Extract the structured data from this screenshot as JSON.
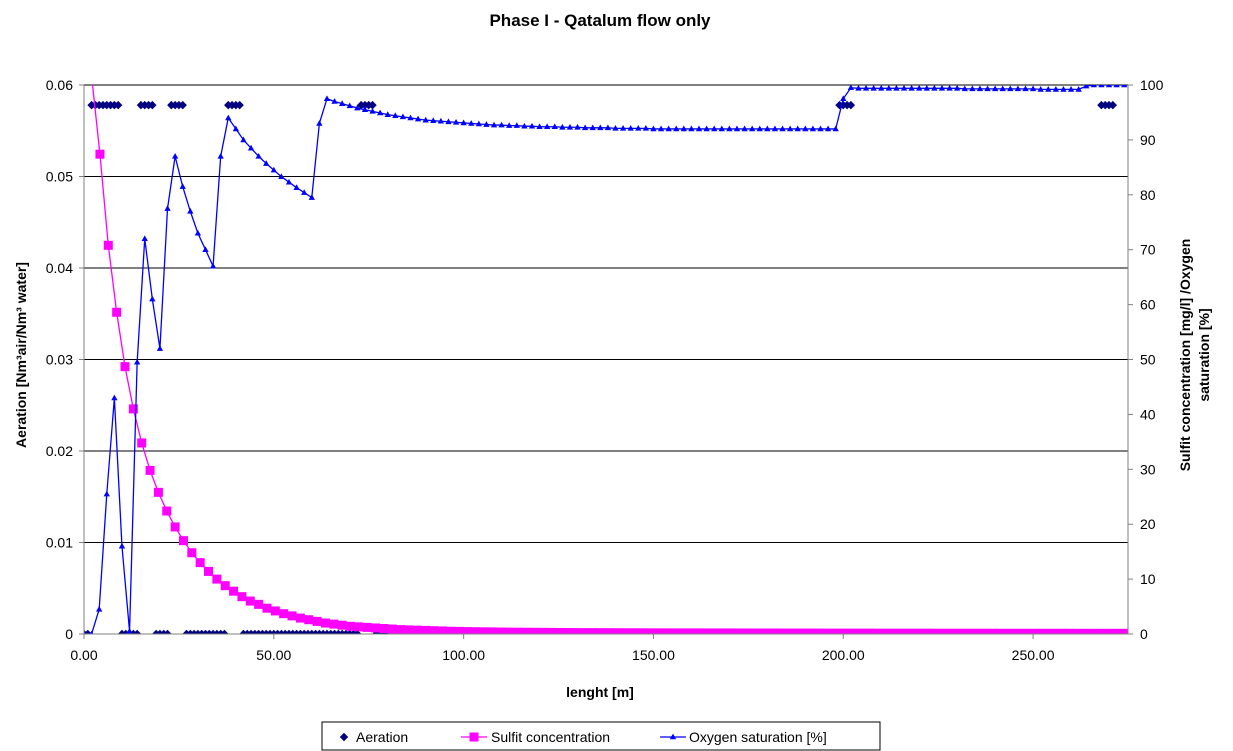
{
  "chart_data": {
    "type": "line",
    "title": "Phase I - Qatalum flow only",
    "xlabel": "lenght [m]",
    "ylabel_left": "Aeration [Nm³air/Nm³ water]",
    "ylabel_right_line1": "Sulfit concentration [mg/l] /Oxygen",
    "ylabel_right_line2": "saturation [%]",
    "xlim": [
      0,
      275
    ],
    "ylim_left": [
      0,
      0.06
    ],
    "ylim_right": [
      0,
      100
    ],
    "x_ticks": [
      "0.00",
      "50.00",
      "100.00",
      "150.00",
      "200.00",
      "250.00"
    ],
    "x_tick_values": [
      0,
      50,
      100,
      150,
      200,
      250
    ],
    "y_left_ticks": [
      "0",
      "0.01",
      "0.02",
      "0.03",
      "0.04",
      "0.05",
      "0.06"
    ],
    "y_left_tick_values": [
      0,
      0.01,
      0.02,
      0.03,
      0.04,
      0.05,
      0.06
    ],
    "y_right_ticks": [
      "0",
      "10",
      "20",
      "30",
      "40",
      "50",
      "60",
      "70",
      "80",
      "90",
      "100"
    ],
    "y_right_tick_values": [
      0,
      10,
      20,
      30,
      40,
      50,
      60,
      70,
      80,
      90,
      100
    ],
    "grid": "horizontal",
    "legend_position": "bottom",
    "series": [
      {
        "name": "Aeration",
        "axis": "left",
        "marker": "diamond",
        "color": "#000080",
        "line": false,
        "x": [
          0,
          1,
          2,
          3,
          4,
          5,
          6,
          7,
          8,
          9,
          10,
          11,
          12,
          13,
          14,
          15,
          16,
          17,
          18,
          19,
          20,
          21,
          22,
          23,
          24,
          25,
          26,
          27,
          28,
          29,
          30,
          31,
          32,
          33,
          34,
          35,
          36,
          37,
          38,
          39,
          40,
          41,
          42,
          43,
          44,
          45,
          46,
          47,
          48,
          49,
          50,
          51,
          52,
          53,
          54,
          55,
          56,
          57,
          58,
          59,
          60,
          61,
          62,
          63,
          64,
          65,
          66,
          67,
          68,
          69,
          70,
          71,
          72,
          73,
          74,
          75,
          76,
          77,
          78,
          79,
          80,
          81,
          82,
          83,
          84,
          85,
          86,
          87,
          88,
          89,
          90,
          91,
          92,
          93,
          94,
          95,
          96,
          97,
          98,
          99,
          100,
          101,
          102,
          103,
          104,
          105,
          106,
          107,
          108,
          109,
          110,
          111,
          112,
          113,
          114,
          115,
          116,
          117,
          118,
          119,
          120,
          121,
          122,
          123,
          124,
          125,
          126,
          127,
          128,
          129,
          130,
          131,
          132,
          133,
          134,
          135,
          136,
          137,
          138,
          139,
          140,
          141,
          142,
          143,
          144,
          145,
          146,
          147,
          148,
          149,
          150,
          151,
          152,
          153,
          154,
          155,
          156,
          157,
          158,
          159,
          160,
          161,
          162,
          163,
          164,
          165,
          166,
          167,
          168,
          169,
          170,
          171,
          172,
          173,
          174,
          175,
          176,
          177,
          178,
          179,
          180,
          181,
          182,
          183,
          184,
          185,
          186,
          187,
          188,
          189,
          190,
          191,
          192,
          193,
          194,
          195,
          196,
          197,
          198,
          199,
          200,
          201,
          202,
          203,
          204,
          205,
          206,
          207,
          208,
          209,
          210,
          211,
          212,
          213,
          214,
          215,
          216,
          217,
          218,
          219,
          220,
          221,
          222,
          223,
          224,
          225,
          226,
          227,
          228,
          229,
          230,
          231,
          232,
          233,
          234,
          235,
          236,
          237,
          238,
          239,
          240,
          241,
          242,
          243,
          244,
          245,
          246,
          247,
          248,
          249,
          250,
          251,
          252,
          253,
          254,
          255,
          256,
          257,
          258,
          259,
          260,
          261,
          262,
          263,
          264,
          265,
          266,
          267,
          268,
          269,
          270,
          271,
          272,
          273,
          274
        ],
        "y": [
          0,
          0,
          0.0578,
          0.0578,
          0.0578,
          0.0578,
          0.0578,
          0.0578,
          0.0578,
          0.0578,
          0,
          0,
          0,
          0,
          0,
          0.0578,
          0.0578,
          0.0578,
          0.0578,
          0,
          0,
          0,
          0,
          0.0578,
          0.0578,
          0.0578,
          0.0578,
          0,
          0,
          0,
          0,
          0,
          0,
          0,
          0,
          0,
          0,
          0,
          0.0578,
          0.0578,
          0.0578,
          0.0578,
          0,
          0,
          0,
          0,
          0,
          0,
          0,
          0,
          0,
          0,
          0,
          0,
          0,
          0,
          0,
          0,
          0,
          0,
          0,
          0,
          0,
          0,
          0,
          0,
          0,
          0,
          0,
          0,
          0,
          0,
          0,
          0.0578,
          0.0578,
          0.0578,
          0.0578,
          0,
          0,
          0,
          0,
          0,
          0,
          0,
          0,
          0,
          0,
          0,
          0,
          0,
          0,
          0,
          0,
          0,
          0,
          0,
          0,
          0,
          0,
          0,
          0,
          0,
          0,
          0,
          0,
          0,
          0,
          0,
          0,
          0,
          0,
          0,
          0,
          0,
          0,
          0,
          0,
          0,
          0,
          0,
          0,
          0,
          0,
          0,
          0,
          0,
          0,
          0,
          0,
          0,
          0,
          0,
          0,
          0,
          0,
          0,
          0,
          0,
          0,
          0,
          0,
          0,
          0,
          0,
          0,
          0,
          0,
          0,
          0,
          0,
          0,
          0,
          0,
          0,
          0,
          0,
          0,
          0,
          0,
          0,
          0,
          0,
          0,
          0,
          0,
          0,
          0,
          0,
          0,
          0,
          0,
          0,
          0,
          0,
          0,
          0,
          0,
          0,
          0,
          0,
          0,
          0,
          0,
          0,
          0,
          0,
          0,
          0,
          0,
          0,
          0,
          0,
          0,
          0,
          0,
          0,
          0,
          0,
          0,
          0.0578,
          0.0578,
          0.0578,
          0.0578,
          0,
          0,
          0,
          0,
          0,
          0,
          0,
          0,
          0,
          0,
          0,
          0,
          0,
          0,
          0,
          0,
          0,
          0,
          0,
          0,
          0,
          0,
          0,
          0,
          0,
          0,
          0,
          0,
          0,
          0,
          0,
          0,
          0,
          0,
          0,
          0,
          0,
          0,
          0,
          0,
          0,
          0,
          0,
          0,
          0,
          0,
          0,
          0,
          0,
          0,
          0,
          0,
          0,
          0,
          0,
          0,
          0,
          0,
          0,
          0,
          0,
          0,
          0,
          0,
          0,
          0.0578,
          0.0578,
          0.0578,
          0.0578,
          0,
          0,
          0
        ]
      },
      {
        "name": "Sulfit concentration",
        "axis": "right",
        "marker": "square",
        "color": "#ff00ff",
        "line": true,
        "x": [
          2,
          4.2,
          6.4,
          8.6,
          10.8,
          13,
          15.2,
          17.4,
          19.6,
          21.8,
          24,
          26.2,
          28.4,
          30.6,
          32.8,
          35,
          37.2,
          39.4,
          41.6,
          43.8,
          46,
          48.2,
          50.4,
          52.6,
          54.8,
          57,
          59.2,
          61.4,
          63.6,
          65.8,
          68,
          70.2,
          72.4,
          74.6,
          76.8,
          79,
          81.2,
          83.4,
          85.6,
          87.8,
          90,
          92.2,
          94.4,
          96.6,
          98.8,
          101,
          103.2,
          105.4,
          107.6,
          109.8,
          112,
          114.2,
          116.4,
          118.6,
          120.8,
          123,
          125.2,
          127.4,
          129.6,
          131.8,
          134,
          136.2,
          138.4,
          140.6,
          142.8,
          145,
          147.2,
          149.4,
          151.6,
          153.8,
          156,
          158.2,
          160.4,
          162.6,
          164.8,
          167,
          169.2,
          171.4,
          173.6,
          175.8,
          178,
          180.2,
          182.4,
          184.6,
          186.8,
          189,
          191.2,
          193.4,
          195.6,
          197.8,
          200,
          202.2,
          204.4,
          206.6,
          208.8,
          211,
          213.2,
          215.4,
          217.6,
          219.8,
          222,
          224.2,
          226.4,
          228.6,
          230.8,
          233,
          235.2,
          237.4,
          239.6,
          241.8,
          244,
          246.2,
          248.4,
          250.6,
          252.8,
          255,
          257.2,
          259.4,
          261.6,
          263.8,
          266,
          268.2,
          270.4,
          272.6,
          274.8
        ],
        "y": [
          101.6,
          87.4,
          70.8,
          58.6,
          48.7,
          41,
          34.8,
          29.8,
          25.8,
          22.4,
          19.5,
          17,
          14.8,
          13,
          11.4,
          10,
          8.8,
          7.8,
          6.8,
          6,
          5.4,
          4.7,
          4.2,
          3.7,
          3.3,
          2.9,
          2.6,
          2.3,
          2,
          1.8,
          1.6,
          1.4,
          1.3,
          1.2,
          1.1,
          1,
          0.9,
          0.8,
          0.75,
          0.7,
          0.65,
          0.6,
          0.55,
          0.5,
          0.47,
          0.44,
          0.42,
          0.4,
          0.38,
          0.36,
          0.34,
          0.33,
          0.32,
          0.31,
          0.3,
          0.29,
          0.28,
          0.27,
          0.26,
          0.25,
          0.25,
          0.24,
          0.24,
          0.23,
          0.23,
          0.22,
          0.22,
          0.21,
          0.21,
          0.21,
          0.2,
          0.2,
          0.2,
          0.2,
          0.19,
          0.19,
          0.19,
          0.19,
          0.18,
          0.18,
          0.18,
          0.18,
          0.18,
          0.17,
          0.17,
          0.17,
          0.17,
          0.17,
          0.16,
          0.16,
          0.16,
          0.16,
          0.16,
          0.16,
          0.15,
          0.15,
          0.15,
          0.15,
          0.15,
          0.15,
          0.15,
          0.14,
          0.14,
          0.14,
          0.14,
          0.14,
          0.14,
          0.14,
          0.14,
          0.13,
          0.13,
          0.13,
          0.13,
          0.13,
          0.13,
          0.13,
          0.13,
          0.13,
          0.12,
          0.12,
          0.12,
          0.12,
          0.12,
          0.12,
          0.12
        ]
      },
      {
        "name": "Oxygen saturation [%]",
        "axis": "right",
        "marker": "triangle",
        "color": "#0000ff",
        "line": true,
        "x": [
          0,
          2,
          4,
          6,
          8,
          10,
          12,
          14,
          16,
          18,
          20,
          22,
          24,
          26,
          28,
          30,
          32,
          34,
          36,
          38,
          40,
          42,
          44,
          46,
          48,
          50,
          52,
          54,
          56,
          58,
          60,
          62,
          64,
          66,
          68,
          70,
          72,
          74,
          76,
          78,
          80,
          82,
          84,
          86,
          88,
          90,
          92,
          94,
          96,
          98,
          100,
          102,
          104,
          106,
          108,
          110,
          112,
          114,
          116,
          118,
          120,
          122,
          124,
          126,
          128,
          130,
          132,
          134,
          136,
          138,
          140,
          142,
          144,
          146,
          148,
          150,
          152,
          154,
          156,
          158,
          160,
          162,
          164,
          166,
          168,
          170,
          172,
          174,
          176,
          178,
          180,
          182,
          184,
          186,
          188,
          190,
          192,
          194,
          196,
          198,
          200,
          202,
          204,
          206,
          208,
          210,
          212,
          214,
          216,
          218,
          220,
          222,
          224,
          226,
          228,
          230,
          232,
          234,
          236,
          238,
          240,
          242,
          244,
          246,
          248,
          250,
          252,
          254,
          256,
          258,
          260,
          262,
          264,
          266,
          268,
          270,
          272,
          274
        ],
        "y": [
          0,
          0,
          4.5,
          25.5,
          43,
          16,
          0.5,
          49.5,
          72,
          61,
          52,
          77.5,
          87,
          81.5,
          77,
          73,
          70,
          67,
          87,
          94,
          92,
          90,
          88.5,
          87,
          85.7,
          84.5,
          83.3,
          82.3,
          81.3,
          80.4,
          79.5,
          93,
          97.5,
          97,
          96.6,
          96.2,
          95.8,
          95.5,
          95.2,
          94.9,
          94.6,
          94.4,
          94.2,
          94,
          93.8,
          93.6,
          93.5,
          93.4,
          93.3,
          93.2,
          93.1,
          93,
          92.9,
          92.8,
          92.7,
          92.7,
          92.6,
          92.6,
          92.5,
          92.5,
          92.4,
          92.4,
          92.4,
          92.3,
          92.3,
          92.3,
          92.2,
          92.2,
          92.2,
          92.2,
          92.1,
          92.1,
          92.1,
          92.1,
          92.1,
          92,
          92,
          92,
          92,
          92,
          92,
          92,
          92,
          92,
          92,
          92,
          92,
          92,
          92,
          92,
          92,
          92,
          92,
          92,
          92,
          92,
          92,
          92,
          92,
          92,
          97.5,
          99.5,
          99.4,
          99.4,
          99.4,
          99.4,
          99.4,
          99.4,
          99.4,
          99.4,
          99.4,
          99.4,
          99.4,
          99.4,
          99.4,
          99.4,
          99.3,
          99.3,
          99.3,
          99.3,
          99.3,
          99.3,
          99.3,
          99.3,
          99.3,
          99.3,
          99.2,
          99.2,
          99.2,
          99.2,
          99.2,
          99.2,
          99.8,
          100,
          100,
          100,
          100,
          100
        ]
      }
    ]
  }
}
